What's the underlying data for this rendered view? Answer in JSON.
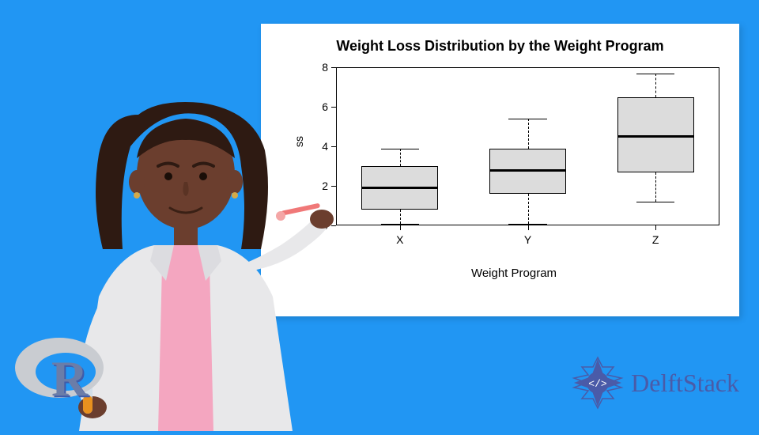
{
  "background_color": "#2196f3",
  "chart": {
    "title": "Weight Loss Distribution by the Weight Program",
    "title_fontsize": 18,
    "panel_bg": "#ffffff",
    "xlabel": "Weight Program",
    "ylabel": "ss",
    "ylim": [
      0,
      8
    ],
    "yticks": [
      0,
      2,
      4,
      6,
      8
    ],
    "categories": [
      "X",
      "Y",
      "Z"
    ],
    "box_fill": "#dcdcdc",
    "box_border": "#000000",
    "boxes": [
      {
        "category": "X",
        "min": 0.1,
        "q1": 0.8,
        "median": 1.9,
        "q3": 3.0,
        "max": 3.9
      },
      {
        "category": "Y",
        "min": 0.1,
        "q1": 1.6,
        "median": 2.8,
        "q3": 3.9,
        "max": 5.4
      },
      {
        "category": "Z",
        "min": 1.2,
        "q1": 2.7,
        "median": 4.5,
        "q3": 6.5,
        "max": 7.7
      }
    ],
    "box_width_ratio": 0.6
  },
  "branding": {
    "delftstack_label": "DelftStack",
    "delftstack_color": "#4a5ba8"
  }
}
